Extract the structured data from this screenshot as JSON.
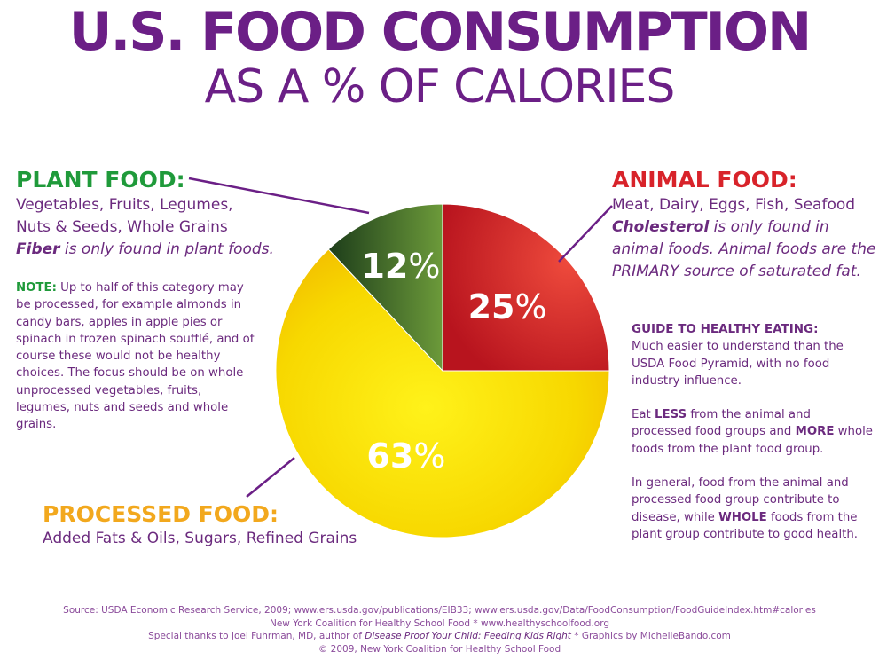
{
  "title": "U.S. FOOD CONSUMPTION",
  "subtitle": "AS A % OF CALORIES",
  "plant": {
    "heading": "PLANT FOOD:",
    "line1": "Vegetables, Fruits, Legumes,",
    "line2": "Nuts & Seeds, Whole Grains",
    "fiber_bold": "Fiber",
    "fiber_rest": " is only found in plant foods.",
    "note_label": "NOTE:",
    "note_text": " Up to half of this category may be processed, for example almonds in candy bars, apples in apple pies or spinach in frozen spinach soufflé, and of course these would not be healthy choices. The focus should be on whole unprocessed vegetables, fruits, legumes, nuts and seeds and whole grains."
  },
  "animal": {
    "heading": "ANIMAL FOOD:",
    "line1": "Meat, Dairy, Eggs, Fish, Seafood",
    "chol_bold": "Cholesterol",
    "chol_rest": " is only found in animal foods.",
    "chol_tail": " Animal foods are the PRIMARY source of saturated fat."
  },
  "processed": {
    "heading": "PROCESSED FOOD:",
    "line1": "Added Fats & Oils, Sugars, Refined Grains"
  },
  "guide": {
    "title": "GUIDE TO HEALTHY EATING:",
    "p1": "Much easier to understand than the USDA Food Pyramid, with no food industry influence.",
    "p2_a": "Eat ",
    "p2_less": "LESS",
    "p2_b": " from the animal and processed food groups and ",
    "p2_more": "MORE",
    "p2_c": " whole foods from the plant food group.",
    "p3_a": "In general, food from the animal and processed food group contribute to disease, while ",
    "p3_whole": "WHOLE",
    "p3_b": " foods from the plant group contribute to good health."
  },
  "footer": {
    "line1": "Source: USDA Economic Research Service, 2009; www.ers.usda.gov/publications/EIB33; www.ers.usda.gov/Data/FoodConsumption/FoodGuideIndex.htm#calories",
    "line2": "New York Coalition for Healthy School Food * www.healthyschoolfood.org",
    "line3_a": "Special thanks to Joel Fuhrman, MD, author of ",
    "line3_book": "Disease Proof Your Child: Feeding Kids Right",
    "line3_b": " * Graphics by MichelleBando.com",
    "line4": "© 2009, New York Coalition for Healthy School Food"
  },
  "chart_data": {
    "type": "pie",
    "slices": [
      {
        "name": "ANIMAL FOOD",
        "value": 25,
        "label": "25",
        "color": "#d8232a"
      },
      {
        "name": "PROCESSED FOOD",
        "value": 63,
        "label": "63",
        "color": "#f5c400"
      },
      {
        "name": "PLANT FOOD",
        "value": 12,
        "label": "12",
        "color": "#2f6a2a"
      }
    ],
    "percent_sign": "%"
  }
}
